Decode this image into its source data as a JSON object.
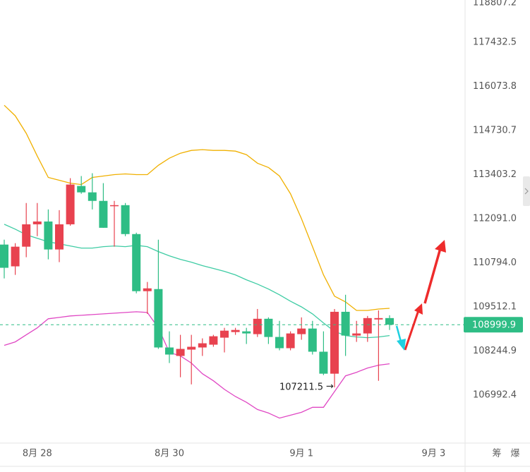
{
  "chart_data": {
    "type": "candlestick",
    "log_scale": true,
    "grid": false,
    "up_color": "#e8424f",
    "down_color": "#2ebd85",
    "categories": [
      null,
      null,
      null,
      "8月 28",
      null,
      null,
      null,
      null,
      null,
      null,
      null,
      null,
      null,
      null,
      null,
      "8月 30",
      null,
      null,
      null,
      null,
      null,
      null,
      null,
      null,
      null,
      null,
      null,
      "9月 1",
      null,
      null,
      null,
      null,
      null,
      null,
      null,
      null,
      null,
      null,
      null,
      "9月 3"
    ],
    "open": [
      111329,
      110691,
      111267,
      111926,
      112009,
      111185,
      111926,
      113064,
      112874,
      112620,
      112472,
      112493,
      111638,
      109968,
      110029,
      108346,
      108104,
      108285,
      108346,
      108426,
      108627,
      108788,
      108808,
      108728,
      109170,
      108647,
      108326,
      108728,
      108889,
      108225,
      107599,
      109371,
      108687,
      108748,
      109150,
      109190,
      null,
      null,
      null,
      null
    ],
    "high": [
      111473,
      111370,
      112557,
      112557,
      112366,
      112345,
      113297,
      113361,
      113445,
      113149,
      112620,
      112557,
      111679,
      110236,
      111473,
      108808,
      108708,
      108708,
      108607,
      108708,
      108909,
      108909,
      108909,
      109452,
      109210,
      109110,
      108808,
      109210,
      109110,
      108808,
      109452,
      109864,
      109110,
      109251,
      109411,
      109271,
      null,
      null,
      null,
      null
    ],
    "low": [
      110339,
      110442,
      110958,
      111576,
      110896,
      110814,
      111885,
      112832,
      112366,
      111823,
      111267,
      111576,
      109906,
      109311,
      108305,
      107902,
      107498,
      107296,
      108104,
      108366,
      108205,
      108708,
      108446,
      108647,
      108446,
      108265,
      108265,
      108567,
      108144,
      107559,
      107211.5,
      108104,
      108506,
      108506,
      107397,
      108848,
      null,
      null,
      null,
      null
    ],
    "close": [
      110649,
      111267,
      111926,
      112009,
      111185,
      111926,
      113107,
      112874,
      112620,
      111823,
      112493,
      111638,
      109968,
      110050,
      108346,
      108144,
      108305,
      108366,
      108466,
      108667,
      108828,
      108848,
      108748,
      109170,
      108647,
      108326,
      108748,
      108889,
      108225,
      107599,
      109371,
      108687,
      108748,
      109190,
      109190,
      108999.9,
      null,
      null,
      null,
      null
    ],
    "lines": [
      {
        "color": "#f0b000",
        "values": [
          115498,
          115178,
          114645,
          113960,
          113319,
          113234,
          113149,
          113107,
          113319,
          113361,
          113403,
          113424,
          113403,
          113403,
          113682,
          113896,
          114046,
          114131,
          114153,
          114131,
          114131,
          114110,
          114003,
          113746,
          113618,
          113361,
          112832,
          112091,
          111267,
          110442,
          109822,
          109657,
          109411,
          109411,
          109452,
          109472,
          null,
          null,
          null,
          null
        ]
      },
      {
        "color": "#3fcca4",
        "values": [
          111926,
          111782,
          111617,
          111514,
          111411,
          111350,
          111288,
          111226,
          111226,
          111267,
          111288,
          111267,
          111308,
          111267,
          111123,
          110999,
          110896,
          110814,
          110711,
          110629,
          110546,
          110442,
          110298,
          110174,
          110029,
          109864,
          109678,
          109512,
          109311,
          109049,
          108808,
          108687,
          108647,
          108627,
          108647,
          108687,
          null,
          null,
          null,
          null
        ]
      },
      {
        "color": "#e048c4",
        "values": [
          108406,
          108506,
          108708,
          108909,
          109170,
          109210,
          109251,
          109271,
          109291,
          109311,
          109331,
          109351,
          109371,
          109351,
          108909,
          108205,
          108104,
          107902,
          107599,
          107397,
          107154,
          106952,
          106790,
          106588,
          106487,
          106346,
          106427,
          106508,
          106649,
          106649,
          107093,
          107538,
          107639,
          107760,
          107841,
          107881,
          null,
          null,
          null,
          null
        ]
      }
    ],
    "ylim": [
      105800,
      118850
    ],
    "yticks": [
      118807.2,
      117432.5,
      116073.8,
      114730.7,
      113403.2,
      {
        "value": 112091,
        "label": "112091.0"
      },
      {
        "value": 110794,
        "label": "110794.0"
      },
      109512.1,
      108244.9,
      106992.4
    ]
  },
  "toolbar": [
    "筹",
    "爆"
  ]
}
